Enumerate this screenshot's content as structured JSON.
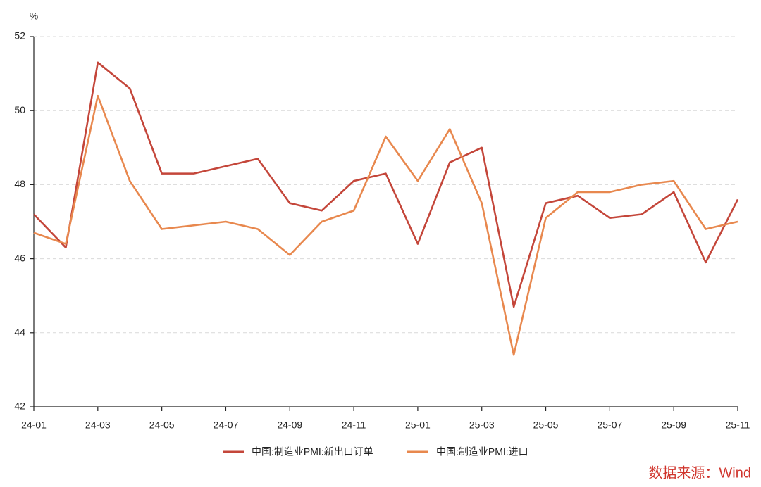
{
  "chart_data": {
    "type": "line",
    "y_unit": "%",
    "source": "数据来源：Wind",
    "categories": [
      "24-01",
      null,
      "24-03",
      null,
      "24-05",
      null,
      "24-07",
      null,
      "24-09",
      null,
      "24-11",
      null,
      "25-01",
      null,
      "25-03",
      null,
      "25-05",
      null,
      "25-07",
      null,
      "25-09",
      null,
      "25-11"
    ],
    "series": [
      {
        "name": "中国:制造业PMI:新出口订单",
        "color": "#c4463a",
        "values": [
          47.2,
          46.3,
          51.3,
          50.6,
          48.3,
          48.3,
          48.5,
          48.7,
          47.5,
          47.3,
          48.1,
          48.3,
          46.4,
          48.6,
          49.0,
          44.7,
          47.5,
          47.7,
          47.1,
          47.2,
          47.8,
          45.9,
          47.6
        ]
      },
      {
        "name": "中国:制造业PMI:进口",
        "color": "#e8884e",
        "values": [
          46.7,
          46.4,
          50.4,
          48.1,
          46.8,
          46.9,
          47.0,
          46.8,
          46.1,
          47.0,
          47.3,
          49.3,
          48.1,
          49.5,
          47.5,
          43.4,
          47.1,
          47.8,
          47.8,
          48.0,
          48.1,
          46.8,
          47.0
        ]
      }
    ],
    "ylim": [
      42,
      52
    ],
    "yticks": [
      42,
      44,
      46,
      48,
      50,
      52
    ],
    "grid": true
  }
}
